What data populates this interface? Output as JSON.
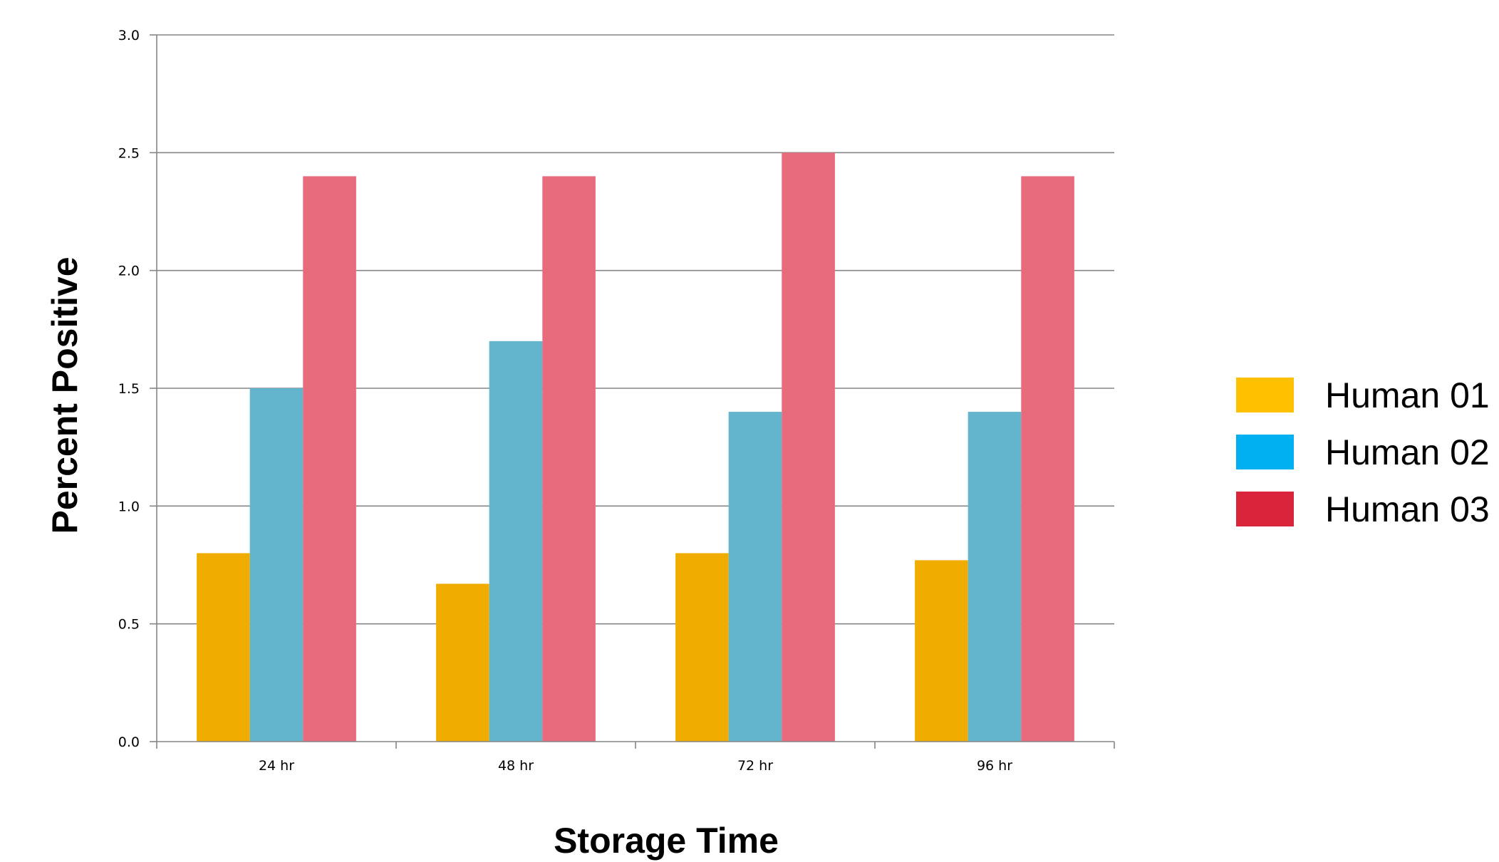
{
  "chart_data": {
    "type": "bar",
    "title": "",
    "xlabel": "Storage Time",
    "ylabel": "Percent Positive",
    "categories": [
      "24 hr",
      "48 hr",
      "72 hr",
      "96 hr"
    ],
    "ylim": [
      0,
      3.0
    ],
    "yticks": [
      "0.0",
      "0.5",
      "1.0",
      "1.5",
      "2.0",
      "2.5",
      "3.0"
    ],
    "grid": true,
    "legend_position": "right",
    "series": [
      {
        "name": "Human 01",
        "values": [
          0.8,
          0.67,
          0.8,
          0.77
        ],
        "color": "#F0AD00",
        "legend_color": "#FFC000"
      },
      {
        "name": "Human 02",
        "values": [
          1.5,
          1.7,
          1.4,
          1.4
        ],
        "color": "#62B5CC",
        "legend_color": "#00B0F0"
      },
      {
        "name": "Human 03",
        "values": [
          2.4,
          2.4,
          2.5,
          2.4
        ],
        "color": "#E76B7C",
        "legend_color": "#DA243C"
      }
    ]
  }
}
